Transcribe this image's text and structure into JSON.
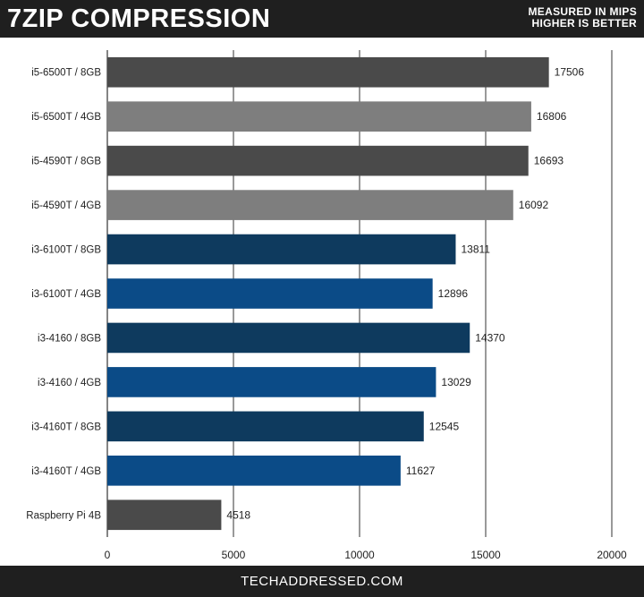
{
  "header": {
    "title": "7ZIP COMPRESSION",
    "subtitle_line1": "MEASURED IN MIPS",
    "subtitle_line2": "HIGHER IS BETTER"
  },
  "footer": {
    "text": "TECHADDRESSED.COM"
  },
  "colors": {
    "dark_gray": "#4a4a4a",
    "light_gray": "#7e7e7e",
    "dark_navy": "#0e3a5e",
    "blue": "#0b4b87",
    "header_bg": "#1f1f1f",
    "grid": "#333333"
  },
  "chart_data": {
    "type": "bar",
    "orientation": "horizontal",
    "title": "7ZIP COMPRESSION",
    "subtitle": "MEASURED IN MIPS / HIGHER IS BETTER",
    "xlabel": "",
    "ylabel": "",
    "xlim": [
      0,
      20000
    ],
    "x_ticks": [
      0,
      5000,
      10000,
      15000,
      20000
    ],
    "grid": "vertical",
    "show_value_labels": true,
    "bars": [
      {
        "label": "i5-6500T / 8GB",
        "value": 17506,
        "color": "#4a4a4a"
      },
      {
        "label": "i5-6500T / 4GB",
        "value": 16806,
        "color": "#7e7e7e"
      },
      {
        "label": "i5-4590T / 8GB",
        "value": 16693,
        "color": "#4a4a4a"
      },
      {
        "label": "i5-4590T / 4GB",
        "value": 16092,
        "color": "#7e7e7e"
      },
      {
        "label": "i3-6100T / 8GB",
        "value": 13811,
        "color": "#0e3a5e"
      },
      {
        "label": "i3-6100T / 4GB",
        "value": 12896,
        "color": "#0b4b87"
      },
      {
        "label": "i3-4160 / 8GB",
        "value": 14370,
        "color": "#0e3a5e"
      },
      {
        "label": "i3-4160 / 4GB",
        "value": 13029,
        "color": "#0b4b87"
      },
      {
        "label": "i3-4160T / 8GB",
        "value": 12545,
        "color": "#0e3a5e"
      },
      {
        "label": "i3-4160T / 4GB",
        "value": 11627,
        "color": "#0b4b87"
      },
      {
        "label": "Raspberry Pi 4B",
        "value": 4518,
        "color": "#4a4a4a"
      }
    ]
  }
}
